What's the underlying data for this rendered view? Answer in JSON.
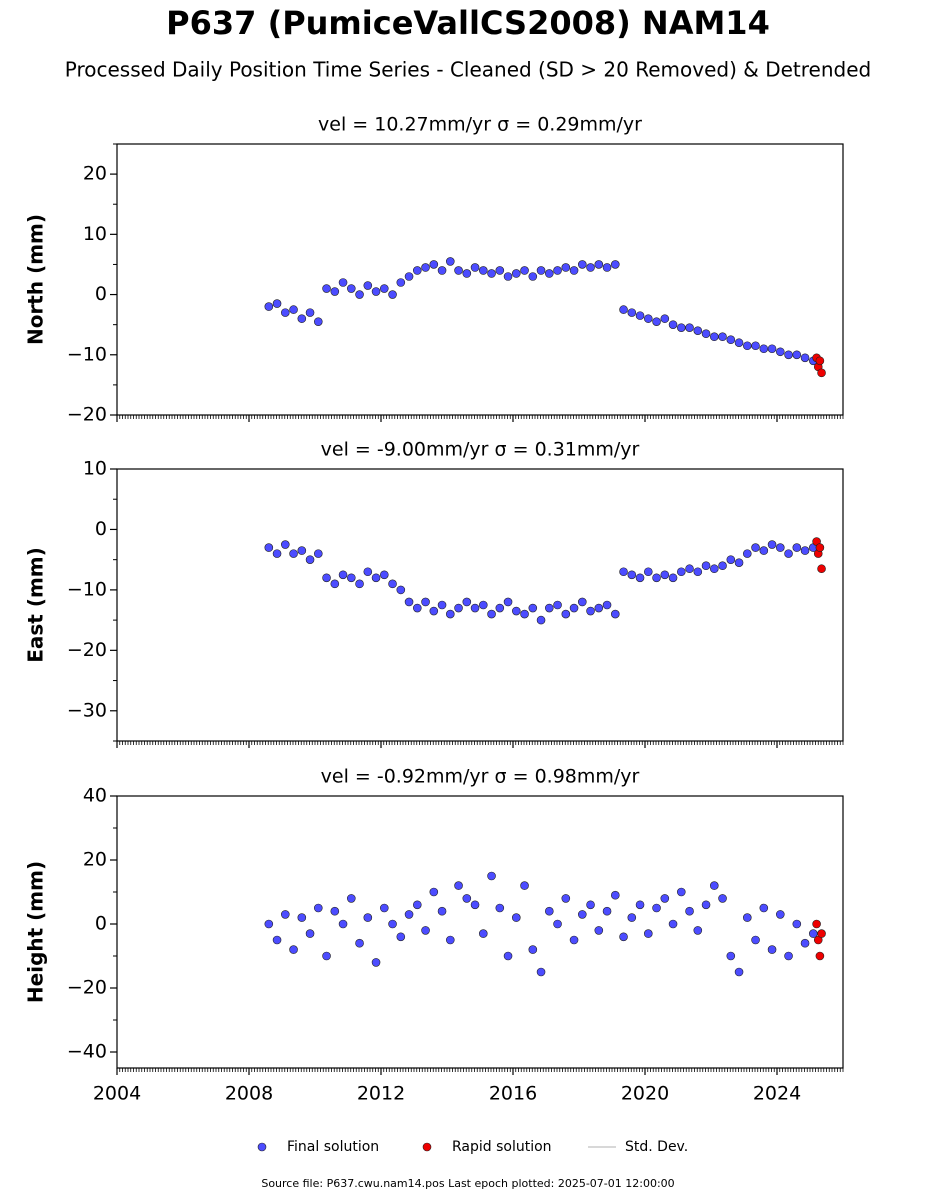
{
  "title": "P637 (PumiceVallCS2008) NAM14",
  "subtitle": "Processed Daily Position Time Series - Cleaned (SD > 20 Removed) & Detrended",
  "std_dev": {
    "name": "Std. Dev.",
    "color": "#cccccc"
  },
  "footer": "Source file: P637.cwu.nam14.pos  Last epoch plotted: 2025-07-01 12:00:00",
  "chart_data": [
    {
      "type": "scatter",
      "title": "vel = 10.27mm/yr   σ = 0.29mm/yr",
      "y_label": "North (mm)",
      "xlim": [
        2004,
        2026
      ],
      "ylim": [
        -20,
        25
      ],
      "yticks": [
        {
          "value": -20,
          "label": "−20"
        },
        {
          "value": -10,
          "label": "−10"
        },
        0,
        10,
        20
      ],
      "series": [
        {
          "name": "Final solution",
          "color": "#4c4cff",
          "x": [
            2008.6,
            2008.85,
            2009.1,
            2009.35,
            2009.6,
            2009.85,
            2010.1,
            2010.35,
            2010.6,
            2010.85,
            2011.1,
            2011.35,
            2011.6,
            2011.85,
            2012.1,
            2012.35,
            2012.6,
            2012.85,
            2013.1,
            2013.35,
            2013.6,
            2013.85,
            2014.1,
            2014.35,
            2014.6,
            2014.85,
            2015.1,
            2015.35,
            2015.6,
            2015.85,
            2016.1,
            2016.35,
            2016.6,
            2016.85,
            2017.1,
            2017.35,
            2017.6,
            2017.85,
            2018.1,
            2018.35,
            2018.6,
            2018.85,
            2019.1,
            2019.35,
            2019.6,
            2019.85,
            2020.1,
            2020.35,
            2020.6,
            2020.85,
            2021.1,
            2021.35,
            2021.6,
            2021.85,
            2022.1,
            2022.35,
            2022.6,
            2022.85,
            2023.1,
            2023.35,
            2023.6,
            2023.85,
            2024.1,
            2024.35,
            2024.6,
            2024.85,
            2025.1
          ],
          "values": [
            -2,
            -1.5,
            -3,
            -2.5,
            -4,
            -3,
            -4.5,
            1,
            0.5,
            2,
            1,
            0,
            1.5,
            0.5,
            1,
            0,
            2,
            3,
            4,
            4.5,
            5,
            4,
            5.5,
            4,
            3.5,
            4.5,
            4,
            3.5,
            4,
            3,
            3.5,
            4,
            3,
            4,
            3.5,
            4,
            4.5,
            4,
            5,
            4.5,
            5,
            4.5,
            5,
            -2.5,
            -3,
            -3.5,
            -4,
            -4.5,
            -4,
            -5,
            -5.5,
            -5.5,
            -6,
            -6.5,
            -7,
            -7,
            -7.5,
            -8,
            -8.5,
            -8.5,
            -9,
            -9,
            -9.5,
            -10,
            -10,
            -10.5,
            -11
          ]
        },
        {
          "name": "Rapid solution",
          "color": "#ee0000",
          "x": [
            2025.2,
            2025.25,
            2025.3,
            2025.35
          ],
          "values": [
            -10.5,
            -12,
            -11,
            -13
          ]
        }
      ]
    },
    {
      "type": "scatter",
      "title": "vel = -9.00mm/yr   σ = 0.31mm/yr",
      "y_label": "East (mm)",
      "xlim": [
        2004,
        2026
      ],
      "ylim": [
        -35,
        10
      ],
      "yticks": [
        {
          "value": -30,
          "label": "−30"
        },
        {
          "value": -20,
          "label": "−20"
        },
        {
          "value": -10,
          "label": "−10"
        },
        0,
        10
      ],
      "series": [
        {
          "name": "Final solution",
          "color": "#4c4cff",
          "x": [
            2008.6,
            2008.85,
            2009.1,
            2009.35,
            2009.6,
            2009.85,
            2010.1,
            2010.35,
            2010.6,
            2010.85,
            2011.1,
            2011.35,
            2011.6,
            2011.85,
            2012.1,
            2012.35,
            2012.6,
            2012.85,
            2013.1,
            2013.35,
            2013.6,
            2013.85,
            2014.1,
            2014.35,
            2014.6,
            2014.85,
            2015.1,
            2015.35,
            2015.6,
            2015.85,
            2016.1,
            2016.35,
            2016.6,
            2016.85,
            2017.1,
            2017.35,
            2017.6,
            2017.85,
            2018.1,
            2018.35,
            2018.6,
            2018.85,
            2019.1,
            2019.35,
            2019.6,
            2019.85,
            2020.1,
            2020.35,
            2020.6,
            2020.85,
            2021.1,
            2021.35,
            2021.6,
            2021.85,
            2022.1,
            2022.35,
            2022.6,
            2022.85,
            2023.1,
            2023.35,
            2023.6,
            2023.85,
            2024.1,
            2024.35,
            2024.6,
            2024.85,
            2025.1
          ],
          "values": [
            -3,
            -4,
            -2.5,
            -4,
            -3.5,
            -5,
            -4,
            -8,
            -9,
            -7.5,
            -8,
            -9,
            -7,
            -8,
            -7.5,
            -9,
            -10,
            -12,
            -13,
            -12,
            -13.5,
            -12.5,
            -14,
            -13,
            -12,
            -13,
            -12.5,
            -14,
            -13,
            -12,
            -13.5,
            -14,
            -13,
            -15,
            -13,
            -12.5,
            -14,
            -13,
            -12,
            -13.5,
            -13,
            -12.5,
            -14,
            -7,
            -7.5,
            -8,
            -7,
            -8,
            -7.5,
            -8,
            -7,
            -6.5,
            -7,
            -6,
            -6.5,
            -6,
            -5,
            -5.5,
            -4,
            -3,
            -3.5,
            -2.5,
            -3,
            -4,
            -3,
            -3.5,
            -3
          ]
        },
        {
          "name": "Rapid solution",
          "color": "#ee0000",
          "x": [
            2025.2,
            2025.25,
            2025.3,
            2025.35
          ],
          "values": [
            -2,
            -4,
            -3,
            -6.5
          ]
        }
      ]
    },
    {
      "type": "scatter",
      "title": "vel = -0.92mm/yr   σ = 0.98mm/yr",
      "y_label": "Height (mm)",
      "xlim": [
        2004,
        2026
      ],
      "ylim": [
        -45,
        40
      ],
      "yticks": [
        {
          "value": -40,
          "label": "−40"
        },
        {
          "value": -20,
          "label": "−20"
        },
        0,
        20,
        40
      ],
      "xticks": [
        2004,
        2008,
        2012,
        2016,
        2020,
        2024
      ],
      "series": [
        {
          "name": "Final solution",
          "color": "#4c4cff",
          "x": [
            2008.6,
            2008.85,
            2009.1,
            2009.35,
            2009.6,
            2009.85,
            2010.1,
            2010.35,
            2010.6,
            2010.85,
            2011.1,
            2011.35,
            2011.6,
            2011.85,
            2012.1,
            2012.35,
            2012.6,
            2012.85,
            2013.1,
            2013.35,
            2013.6,
            2013.85,
            2014.1,
            2014.35,
            2014.6,
            2014.85,
            2015.1,
            2015.35,
            2015.6,
            2015.85,
            2016.1,
            2016.35,
            2016.6,
            2016.85,
            2017.1,
            2017.35,
            2017.6,
            2017.85,
            2018.1,
            2018.35,
            2018.6,
            2018.85,
            2019.1,
            2019.35,
            2019.6,
            2019.85,
            2020.1,
            2020.35,
            2020.6,
            2020.85,
            2021.1,
            2021.35,
            2021.6,
            2021.85,
            2022.1,
            2022.35,
            2022.6,
            2022.85,
            2023.1,
            2023.35,
            2023.6,
            2023.85,
            2024.1,
            2024.35,
            2024.6,
            2024.85,
            2025.1
          ],
          "values": [
            0,
            -5,
            3,
            -8,
            2,
            -3,
            5,
            -10,
            4,
            0,
            8,
            -6,
            2,
            -12,
            5,
            0,
            -4,
            3,
            6,
            -2,
            10,
            4,
            -5,
            12,
            8,
            6,
            -3,
            15,
            5,
            -10,
            2,
            12,
            -8,
            -15,
            4,
            0,
            8,
            -5,
            3,
            6,
            -2,
            4,
            9,
            -4,
            2,
            6,
            -3,
            5,
            8,
            0,
            10,
            4,
            -2,
            6,
            12,
            8,
            -10,
            -15,
            2,
            -5,
            5,
            -8,
            3,
            -10,
            0,
            -6,
            -3
          ]
        },
        {
          "name": "Rapid solution",
          "color": "#ee0000",
          "x": [
            2025.2,
            2025.25,
            2025.3,
            2025.35
          ],
          "values": [
            0,
            -5,
            -10,
            -3
          ]
        }
      ]
    }
  ]
}
